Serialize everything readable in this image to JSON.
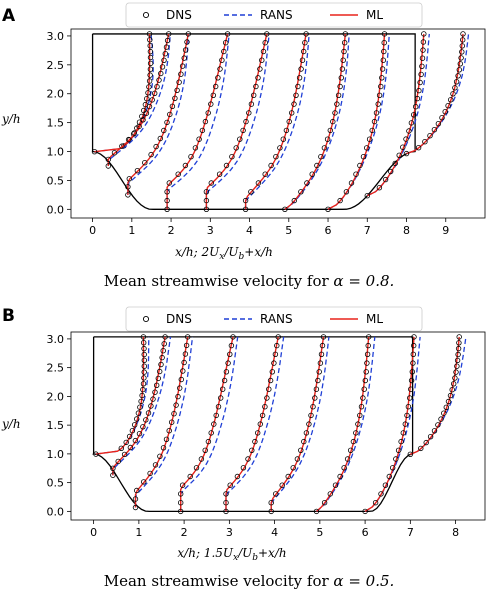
{
  "legend": [
    {
      "key": "dns",
      "label": "DNS",
      "marker": "open-circle",
      "color": "#000000"
    },
    {
      "key": "rans",
      "label": "RANS",
      "line": "dashed",
      "color": "#1f3fd6"
    },
    {
      "key": "ml",
      "label": "ML",
      "line": "solid",
      "color": "#e8231b"
    }
  ],
  "chart_data": [
    {
      "type": "line",
      "panel": "A",
      "caption": "Mean streamwise velocity for α = 0.8.",
      "caption_text": "Mean streamwise velocity for ",
      "caption_math": "α = 0.8.",
      "xlabel": "x/h;   2Uₓ/Uᵦ+x/h",
      "xlabel_text": "x/h;   2U",
      "xlabel_sub1": "x",
      "xlabel_mid": "/U",
      "xlabel_sub2": "b",
      "xlabel_end": "+x/h",
      "ylabel": "y/h",
      "alpha": 0.8,
      "profile_scale": 2,
      "xlim": [
        -0.55,
        10.0
      ],
      "ylim": [
        -0.15,
        3.12
      ],
      "xticks": [
        "0",
        "1",
        "2",
        "3",
        "4",
        "5",
        "6",
        "7",
        "8",
        "9"
      ],
      "yticks": [
        "0.0",
        "0.5",
        "1.0",
        "1.5",
        "2.0",
        "2.5",
        "3.0"
      ],
      "geometry": {
        "length": 8.22,
        "height": 3.035,
        "hill_height": 1.0,
        "hill_end": 1.5,
        "hill_start": 6.42
      },
      "station_x": [
        0.05,
        0.5,
        1,
        2,
        3,
        4,
        5,
        6,
        7,
        8
      ],
      "series": [
        {
          "name": "DNS",
          "u_at_y3": [
            0.72,
            0.7,
            0.68,
            0.68,
            0.68,
            0.68,
            0.68,
            0.68,
            0.68,
            0.68
          ]
        },
        {
          "name": "RANS",
          "u_at_y3": [
            0.72,
            0.72,
            0.7,
            0.72,
            0.73,
            0.74,
            0.75,
            0.76,
            0.77,
            0.77
          ]
        },
        {
          "name": "ML",
          "u_at_y3": [
            0.72,
            0.7,
            0.68,
            0.68,
            0.68,
            0.68,
            0.68,
            0.68,
            0.68,
            0.68
          ]
        }
      ]
    },
    {
      "type": "line",
      "panel": "B",
      "caption": "Mean streamwise velocity for α = 0.5.",
      "caption_text": "Mean streamwise velocity for ",
      "caption_math": "α = 0.5.",
      "xlabel": "x/h;   1.5Uₓ/Uᵦ+x/h",
      "xlabel_text": "x/h;   1.5U",
      "xlabel_sub1": "x",
      "xlabel_mid": "/U",
      "xlabel_sub2": "b",
      "xlabel_end": "+x/h",
      "ylabel": "y/h",
      "alpha": 0.5,
      "profile_scale": 1.5,
      "xlim": [
        -0.5,
        8.65
      ],
      "ylim": [
        -0.15,
        3.12
      ],
      "xticks": [
        "0",
        "1",
        "2",
        "3",
        "4",
        "5",
        "6",
        "7",
        "8"
      ],
      "yticks": [
        "0.0",
        "0.5",
        "1.0",
        "1.5",
        "2.0",
        "2.5",
        "3.0"
      ],
      "geometry": {
        "length": 7.05,
        "height": 3.035,
        "hill_height": 1.0,
        "hill_end": 1.2,
        "hill_start": 6.12
      },
      "station_x": [
        0.05,
        0.5,
        1,
        2,
        3,
        4,
        5,
        6,
        7
      ],
      "series": [
        {
          "name": "DNS",
          "u_at_y3": [
            0.78,
            0.78,
            0.76,
            0.76,
            0.76,
            0.76,
            0.77,
            0.77,
            0.77
          ]
        },
        {
          "name": "RANS",
          "u_at_y3": [
            0.78,
            0.78,
            0.77,
            0.77,
            0.78,
            0.78,
            0.79,
            0.79,
            0.8
          ]
        },
        {
          "name": "ML",
          "u_at_y3": [
            0.78,
            0.78,
            0.76,
            0.76,
            0.76,
            0.76,
            0.77,
            0.77,
            0.77
          ]
        }
      ]
    }
  ]
}
